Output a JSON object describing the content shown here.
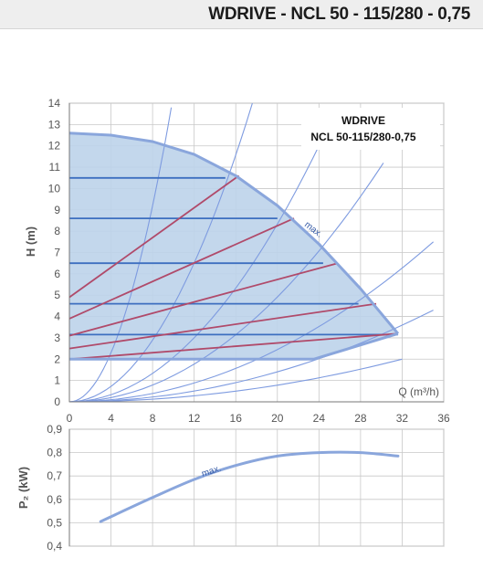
{
  "header": {
    "title": "WDRIVE - NCL 50 - 115/280 - 0,75"
  },
  "colors": {
    "area_fill": "#bdd3ea",
    "curve_outline": "#8aa6dc",
    "speed_line": "#3d6fc0",
    "system_curve": "#7e9be0",
    "power_line": "#b04a6a"
  },
  "chart_data": [
    {
      "type": "line",
      "title": "",
      "model_label": {
        "line1": "WDRIVE",
        "line2": "NCL 50-115/280-0,75"
      },
      "xlabel": "Q (m³/h)",
      "ylabel": "H (m)",
      "xlim": [
        0,
        36
      ],
      "ylim": [
        0,
        14
      ],
      "x_ticks": [
        "0",
        "4",
        "8",
        "12",
        "16",
        "20",
        "24",
        "28",
        "32",
        "36"
      ],
      "y_ticks": [
        "0",
        "1",
        "2",
        "3",
        "4",
        "5",
        "6",
        "7",
        "8",
        "9",
        "10",
        "11",
        "12",
        "13",
        "14"
      ],
      "grid": true,
      "curve_annotation": "max.",
      "max_curve": {
        "x": [
          0,
          4,
          8,
          12,
          16,
          20,
          24,
          28,
          31.6
        ],
        "y": [
          12.6,
          12.5,
          12.2,
          11.6,
          10.6,
          9.2,
          7.4,
          5.3,
          3.2
        ]
      },
      "min_curve": {
        "x": [
          0,
          23.5,
          31.6
        ],
        "y": [
          2,
          2,
          3.2
        ]
      },
      "constant_pressure_lines": [
        {
          "x": [
            0,
            15
          ],
          "y": [
            10.5,
            10.5
          ]
        },
        {
          "x": [
            0,
            20
          ],
          "y": [
            8.6,
            8.6
          ]
        },
        {
          "x": [
            0,
            24.4
          ],
          "y": [
            6.5,
            6.5
          ]
        },
        {
          "x": [
            0,
            27.8
          ],
          "y": [
            4.6,
            4.6
          ]
        },
        {
          "x": [
            0,
            31.6
          ],
          "y": [
            3.15,
            3.15
          ]
        }
      ],
      "proportional_pressure_lines": [
        {
          "x": [
            0,
            16.3
          ],
          "y": [
            4.9,
            10.6
          ]
        },
        {
          "x": [
            0,
            21.6
          ],
          "y": [
            3.9,
            8.6
          ]
        },
        {
          "x": [
            0,
            25.8
          ],
          "y": [
            3.1,
            6.5
          ]
        },
        {
          "x": [
            0,
            29.5
          ],
          "y": [
            2.5,
            4.6
          ]
        },
        {
          "x": [
            0,
            31.6
          ],
          "y": [
            2.0,
            3.2
          ]
        }
      ],
      "system_curves": [
        {
          "x_end": 9.8,
          "y_end": 13.8
        },
        {
          "x_end": 17.6,
          "y_end": 14.0
        },
        {
          "x_end": 24.2,
          "y_end": 12.2
        },
        {
          "x_end": 30.2,
          "y_end": 11.2
        },
        {
          "x_end": 35.0,
          "y_end": 7.5
        },
        {
          "x_end": 35.0,
          "y_end": 4.3
        },
        {
          "x_end": 32.0,
          "y_end": 2.0
        }
      ]
    },
    {
      "type": "line",
      "title": "",
      "xlabel": "",
      "ylabel": "P₂ (kW)",
      "xlim": [
        0,
        36
      ],
      "ylim": [
        0.4,
        0.9
      ],
      "y_ticks": [
        "0,9",
        "0,8",
        "0,7",
        "0,6",
        "0,5",
        "0,4"
      ],
      "grid": true,
      "curve_annotation": "max.",
      "series": [
        {
          "x": [
            3,
            8,
            12,
            16,
            20,
            24,
            28,
            31.6
          ],
          "y": [
            0.505,
            0.608,
            0.685,
            0.745,
            0.785,
            0.8,
            0.8,
            0.785
          ]
        }
      ]
    }
  ]
}
